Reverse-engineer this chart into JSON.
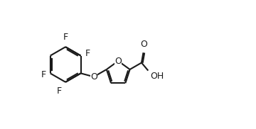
{
  "bg_color": "#ffffff",
  "line_color": "#1a1a1a",
  "line_width": 1.5,
  "font_size": 9.0,
  "fig_width": 3.6,
  "fig_height": 1.82,
  "dpi": 100,
  "xlim": [
    -0.3,
    9.5
  ],
  "ylim": [
    -0.2,
    5.0
  ]
}
